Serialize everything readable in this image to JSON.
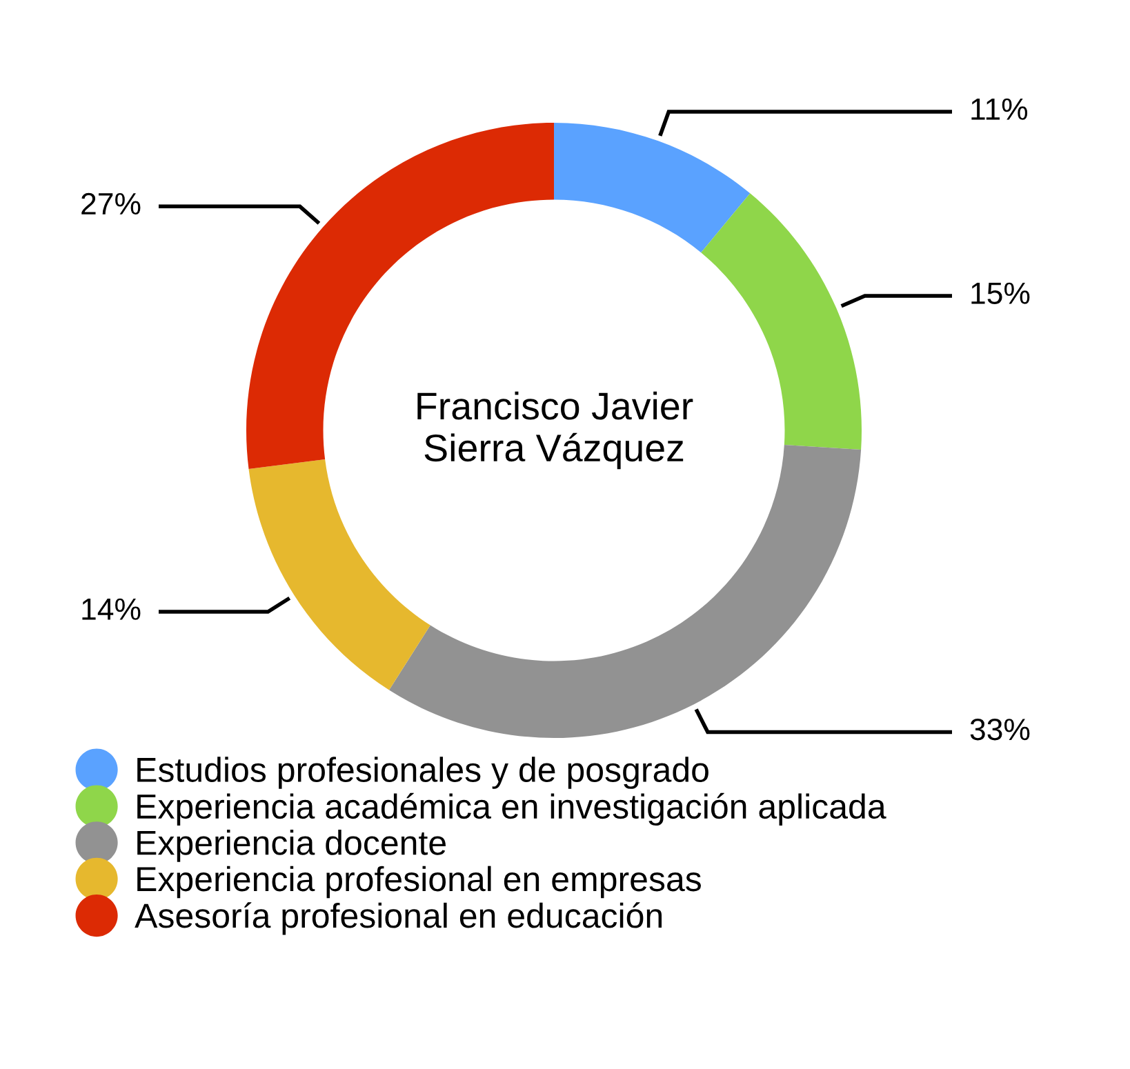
{
  "chart_data": {
    "type": "donut",
    "title": "Francisco Javier\nSierra Vázquez",
    "categories": [
      "Estudios profesionales y de posgrado",
      "Experiencia académica en investigación aplicada",
      "Experiencia docente",
      "Experiencia profesional en empresas",
      "Asesoría profesional en educación"
    ],
    "values": [
      11,
      15,
      33,
      14,
      27
    ],
    "colors": [
      "#5aa2ff",
      "#8fd64a",
      "#929292",
      "#e6b82e",
      "#dc2a04"
    ],
    "value_labels": [
      "11%",
      "15%",
      "33%",
      "14%",
      "27%"
    ],
    "legend": "bottom"
  }
}
